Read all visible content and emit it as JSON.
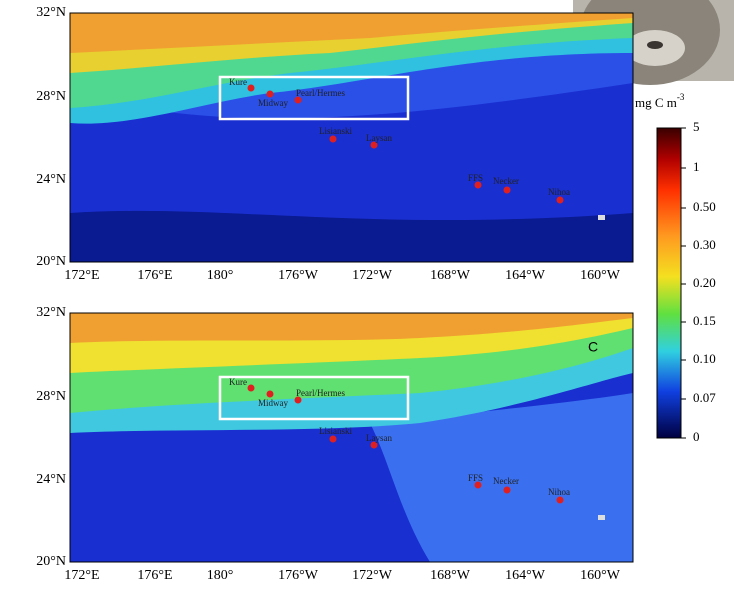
{
  "panels": [
    {
      "lat_labels": [
        "32°N",
        "28°N",
        "24°N",
        "20°N"
      ],
      "lon_labels": [
        "172°E",
        "176°E",
        "180°",
        "176°W",
        "172°W",
        "168°W",
        "164°W",
        "160°W"
      ],
      "islands": [
        "Kure",
        "Midway",
        "Pearl/Hermes",
        "Lisianski",
        "Laysan",
        "FFS",
        "Necker",
        "Nihoa"
      ]
    },
    {
      "panel_label": "C",
      "lat_labels": [
        "32°N",
        "28°N",
        "24°N",
        "20°N"
      ],
      "lon_labels": [
        "172°E",
        "176°E",
        "180°",
        "176°W",
        "172°W",
        "168°W",
        "164°W",
        "160°W"
      ],
      "islands": [
        "Kure",
        "Midway",
        "Pearl/Hermes",
        "Lisianski",
        "Laysan",
        "FFS",
        "Necker",
        "Nihoa"
      ]
    }
  ],
  "colorbar": {
    "unit": "mg C m",
    "unit_exponent": "-3",
    "labels": [
      "5",
      "1",
      "0.50",
      "0.30",
      "0.20",
      "0.15",
      "0.10",
      "0.07",
      "0"
    ]
  }
}
